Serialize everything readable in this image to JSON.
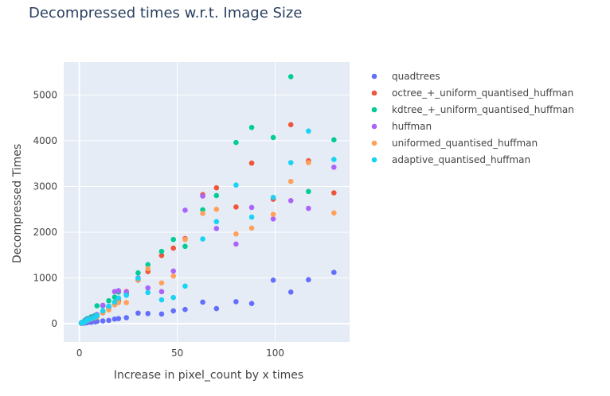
{
  "chart_data": {
    "type": "scatter",
    "title": "Decompressed times w.r.t. Image Size",
    "xlabel": "Increase in pixel_count by x times",
    "ylabel": "Decompressed Times",
    "xlim": [
      -8,
      138
    ],
    "ylim": [
      -400,
      5720
    ],
    "x_ticks": [
      0,
      50,
      100
    ],
    "y_ticks": [
      0,
      1000,
      2000,
      3000,
      4000,
      5000
    ],
    "grid": true,
    "legend_position": "right",
    "x": [
      1,
      2,
      3,
      4,
      6,
      8,
      9,
      12,
      15,
      18,
      20,
      24,
      30,
      35,
      42,
      48,
      54,
      63,
      70,
      80,
      88,
      99,
      108,
      117,
      130
    ],
    "series": [
      {
        "name": "quadtrees",
        "color": "#636efa",
        "values": [
          5,
          10,
          15,
          20,
          30,
          40,
          50,
          60,
          70,
          100,
          110,
          130,
          230,
          220,
          210,
          280,
          310,
          470,
          330,
          480,
          440,
          950,
          690,
          960,
          1120
        ]
      },
      {
        "name": "octree_+_uniform_quantised_huffman",
        "color": "#EF553B",
        "values": [
          10,
          20,
          50,
          70,
          110,
          130,
          160,
          240,
          360,
          420,
          500,
          700,
          950,
          1140,
          1490,
          1650,
          1860,
          2820,
          2970,
          2550,
          3510,
          2720,
          4350,
          3560,
          2860
        ]
      },
      {
        "name": "kdtree_+_uniform_quantised_huffman",
        "color": "#00cc96",
        "values": [
          20,
          40,
          80,
          110,
          150,
          180,
          390,
          390,
          500,
          580,
          690,
          650,
          1110,
          1290,
          1580,
          1840,
          1690,
          2490,
          2800,
          3960,
          4290,
          4070,
          5400,
          2890,
          4020
        ]
      },
      {
        "name": "huffman",
        "color": "#ab63fa",
        "values": [
          15,
          30,
          60,
          90,
          120,
          150,
          200,
          400,
          360,
          700,
          720,
          690,
          1000,
          780,
          700,
          1150,
          2480,
          2790,
          2080,
          1740,
          2540,
          2290,
          2690,
          2520,
          3420
        ]
      },
      {
        "name": "uniformed_quantised_huffman",
        "color": "#FFA15A",
        "values": [
          10,
          20,
          40,
          70,
          100,
          130,
          150,
          250,
          300,
          410,
          460,
          460,
          960,
          1200,
          890,
          1040,
          1840,
          2410,
          2500,
          1960,
          2090,
          2390,
          3110,
          3520,
          2420
        ]
      },
      {
        "name": "adaptive_quantised_huffman",
        "color": "#19d3f3",
        "values": [
          12,
          25,
          45,
          80,
          105,
          140,
          180,
          280,
          380,
          470,
          560,
          620,
          990,
          680,
          520,
          570,
          820,
          1850,
          2230,
          3030,
          2330,
          2760,
          3520,
          4210,
          3590
        ]
      }
    ]
  }
}
